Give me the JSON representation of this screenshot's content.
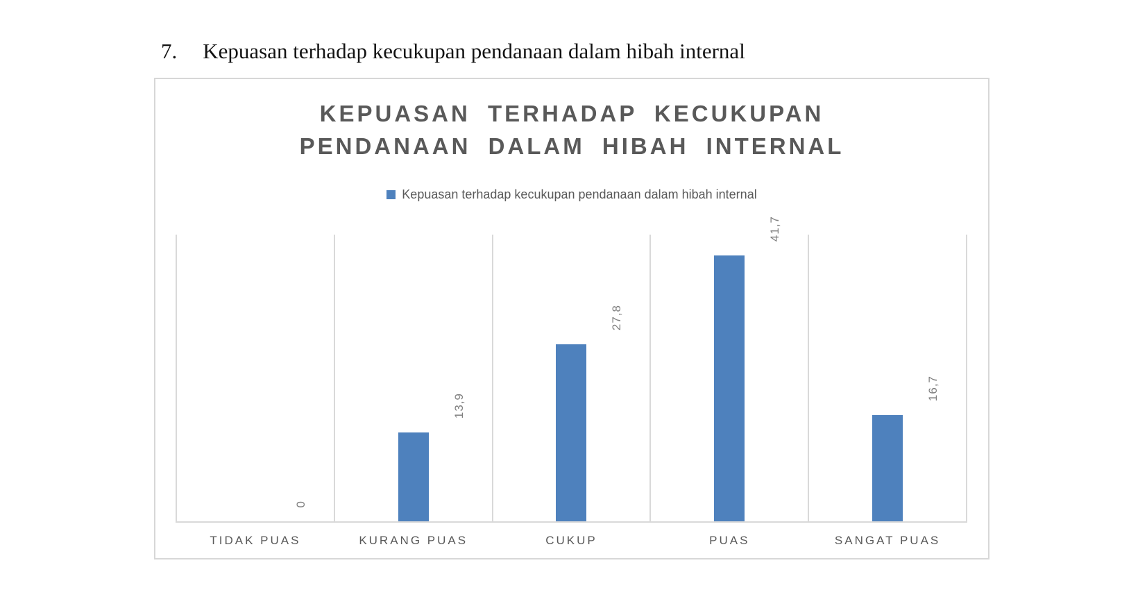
{
  "page": {
    "heading_number": "7.",
    "heading_text": "Kepuasan terhadap kecukupan pendanaan dalam hibah internal"
  },
  "chart": {
    "title_lines": [
      "KEPUASAN TERHADAP KECUKUPAN",
      "PENDANAAN DALAM HIBAH INTERNAL"
    ],
    "legend_label": "Kepuasan terhadap kecukupan pendanaan dalam hibah internal",
    "colors": {
      "bar": "#4E81BD",
      "title_text": "#595959",
      "gridline": "#D9D9D9",
      "data_label": "#7F7F7F",
      "category_label": "#595959"
    }
  },
  "chart_data": {
    "type": "bar",
    "title": "KEPUASAN TERHADAP KECUKUPAN PENDANAAN DALAM HIBAH INTERNAL",
    "categories": [
      "TIDAK PUAS",
      "KURANG PUAS",
      "CUKUP",
      "PUAS",
      "SANGAT PUAS"
    ],
    "series": [
      {
        "name": "Kepuasan terhadap kecukupan pendanaan dalam hibah internal",
        "values": [
          0,
          13.9,
          27.8,
          41.7,
          16.7
        ]
      }
    ],
    "data_labels": [
      "0",
      "13,9",
      "27,8",
      "41,7",
      "16,7"
    ],
    "xlabel": "",
    "ylabel": "",
    "ylim": [
      0,
      45
    ],
    "grid": "vertical-category-separators",
    "legend_position": "top",
    "data_label_rotation": -90
  }
}
